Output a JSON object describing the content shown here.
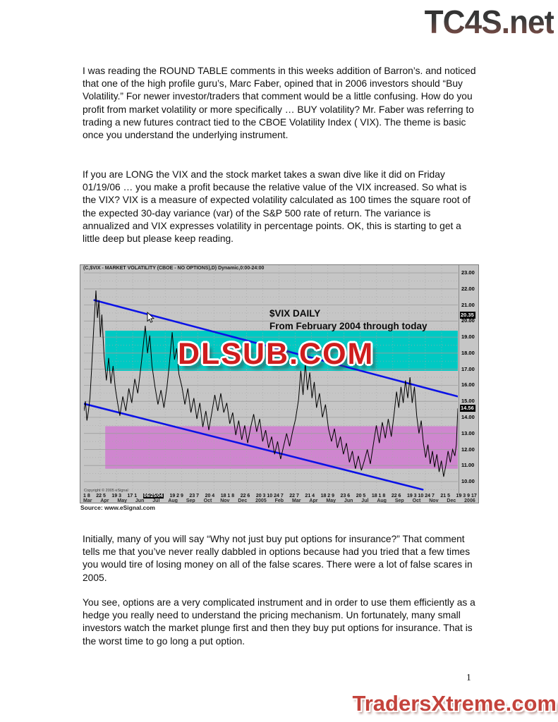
{
  "header": {
    "site_logo": "TC4S.net"
  },
  "article": {
    "p1": "I was reading the ROUND TABLE comments in this weeks addition of Barron’s. and noticed that one of the high profile guru’s, Marc Faber, opined that in 2006 investors should “Buy Volatility.” For newer investor/traders that comment would be a little confusing. How do you profit from market volatility or more specifically … BUY volatility? Mr. Faber was referring to trading a new futures contract tied to the CBOE Volatility Index ( VIX). The theme is basic once you understand the underlying instrument.",
    "p2": "If you are LONG the VIX and the stock market takes a swan dive like it did on Friday 01/19/06 … you make a profit because the relative value of the VIX increased. So what is the VIX?  VIX is a measure of expected volatility calculated as 100 times the square root of the expected 30-day variance (var) of the S&P 500 rate of return. The variance is annualized and VIX expresses volatility in percentage points. OK, this is starting to get a little deep but please keep reading.",
    "p3": "Initially, many of you will say “Why not just buy put options for insurance?” That comment tells me that you’ve never really dabbled in options because had you tried that a few times you would tire of losing money on all of the false scares. There were a lot of false scares in 2005.",
    "p4": "You see, options are a very complicated instrument and in order to use them efficiently as a hedge you really need to understand the pricing mechanism. Un fortunately, many small investors watch the market plunge first and then they buy put options for insurance. That is the worst time to go long a put option."
  },
  "footer": {
    "page_number": "1",
    "site_logo": "TradersXtreme.com"
  },
  "chart_data": {
    "type": "line",
    "title": "(C,$VIX - MARKET VOLATILITY (CBOE - NO OPTIONS),D) Dynamic,0:00-24:00",
    "annotation1": "$VIX DAILY",
    "annotation2": "From February 2004 through today",
    "watermark": "DLSUB.COM",
    "copyright": "Copyright © 2005 eSignal",
    "source": "Source: www.eSignal.com",
    "ylim": [
      9.3,
      23.5
    ],
    "y_ticks": [
      "23.00",
      "22.00",
      "21.00",
      "20.00",
      "19.00",
      "18.00",
      "17.00",
      "16.00",
      "15.00",
      "14.00",
      "13.00",
      "12.00",
      "11.00",
      "10.00"
    ],
    "y_badges": [
      "20.35",
      "14.56"
    ],
    "x_day_labels": [
      "1 8",
      "22 5",
      "19 3",
      "17 1",
      "06/25/04",
      "19 2 9",
      "23 7",
      "20 4",
      "18 1 8",
      "22 6",
      "20 3 10 24 7",
      "22 7",
      "21 4",
      "18 2 9",
      "23 6",
      "20 5",
      "18 1 8",
      "22 6",
      "19 3 10 24 7",
      "21 5",
      "19 3 9 17"
    ],
    "x_day_highlight": "06/25/04",
    "x_month_labels": [
      "Mar",
      "Apr",
      "May",
      "Jun",
      "Jul",
      "Aug",
      "Sep",
      "Oct",
      "Nov",
      "Dec",
      "2005",
      "Feb",
      "Mar",
      "Apr",
      "May",
      "Jun",
      "Jul",
      "Aug",
      "Sep",
      "Oct",
      "Nov",
      "Dec",
      "2006"
    ],
    "grid": true,
    "legend": "none",
    "colors": {
      "chart_background": "#c6c6c6",
      "upper_band": "#00c9c3",
      "lower_band": "#cf86cf",
      "trendline_blue": "#0b12e6",
      "price_line": "#000000",
      "watermark_red": "#cf1d1d",
      "footer_logo_red": "#c4433c"
    },
    "bands": [
      {
        "name": "resistance-zone",
        "color": "#00c9c3",
        "from": 16.9,
        "to": 19.4,
        "x_start": 0.057
      },
      {
        "name": "support-zone",
        "color": "#cf86cf",
        "from": 10.8,
        "to": 13.45,
        "x_start": 0.057
      }
    ],
    "trendlines": [
      {
        "name": "upper-channel",
        "x1": 0.028,
        "v1": 21.3,
        "x2": 1.0,
        "v2": 15.3
      },
      {
        "name": "lower-channel",
        "x1": 0.0,
        "v1": 14.85,
        "x2": 0.906,
        "v2": 9.5
      }
    ],
    "series": [
      {
        "name": "$VIX",
        "color": "#000000",
        "points": [
          [
            0.0,
            14.4
          ],
          [
            0.004,
            15.0
          ],
          [
            0.008,
            13.8
          ],
          [
            0.012,
            14.4
          ],
          [
            0.016,
            15.2
          ],
          [
            0.02,
            16.8
          ],
          [
            0.026,
            19.5
          ],
          [
            0.032,
            21.9
          ],
          [
            0.036,
            20.2
          ],
          [
            0.04,
            21.3
          ],
          [
            0.044,
            19.0
          ],
          [
            0.048,
            20.4
          ],
          [
            0.054,
            17.8
          ],
          [
            0.06,
            16.3
          ],
          [
            0.066,
            17.7
          ],
          [
            0.072,
            16.1
          ],
          [
            0.078,
            17.2
          ],
          [
            0.084,
            15.8
          ],
          [
            0.09,
            14.9
          ],
          [
            0.096,
            14.1
          ],
          [
            0.104,
            15.3
          ],
          [
            0.112,
            14.4
          ],
          [
            0.12,
            15.8
          ],
          [
            0.128,
            14.9
          ],
          [
            0.136,
            16.4
          ],
          [
            0.144,
            15.5
          ],
          [
            0.152,
            17.1
          ],
          [
            0.158,
            18.3
          ],
          [
            0.164,
            19.7
          ],
          [
            0.17,
            18.0
          ],
          [
            0.176,
            19.1
          ],
          [
            0.182,
            17.2
          ],
          [
            0.19,
            15.9
          ],
          [
            0.198,
            14.8
          ],
          [
            0.206,
            15.7
          ],
          [
            0.214,
            14.6
          ],
          [
            0.222,
            15.9
          ],
          [
            0.228,
            17.2
          ],
          [
            0.236,
            19.3
          ],
          [
            0.242,
            17.6
          ],
          [
            0.248,
            18.3
          ],
          [
            0.254,
            16.7
          ],
          [
            0.262,
            15.9
          ],
          [
            0.27,
            14.8
          ],
          [
            0.278,
            15.8
          ],
          [
            0.286,
            14.3
          ],
          [
            0.294,
            15.2
          ],
          [
            0.302,
            13.9
          ],
          [
            0.31,
            14.9
          ],
          [
            0.318,
            13.4
          ],
          [
            0.326,
            14.4
          ],
          [
            0.334,
            13.2
          ],
          [
            0.342,
            14.3
          ],
          [
            0.35,
            15.4
          ],
          [
            0.358,
            14.4
          ],
          [
            0.366,
            15.5
          ],
          [
            0.374,
            14.3
          ],
          [
            0.382,
            14.9
          ],
          [
            0.39,
            13.6
          ],
          [
            0.398,
            14.3
          ],
          [
            0.406,
            12.9
          ],
          [
            0.414,
            13.8
          ],
          [
            0.422,
            12.6
          ],
          [
            0.43,
            13.5
          ],
          [
            0.438,
            12.4
          ],
          [
            0.446,
            13.4
          ],
          [
            0.454,
            14.2
          ],
          [
            0.462,
            13.1
          ],
          [
            0.47,
            13.9
          ],
          [
            0.478,
            12.5
          ],
          [
            0.486,
            13.2
          ],
          [
            0.494,
            12.1
          ],
          [
            0.502,
            12.8
          ],
          [
            0.51,
            11.7
          ],
          [
            0.518,
            12.5
          ],
          [
            0.526,
            11.4
          ],
          [
            0.534,
            12.2
          ],
          [
            0.542,
            13.0
          ],
          [
            0.55,
            12.2
          ],
          [
            0.558,
            13.1
          ],
          [
            0.566,
            13.9
          ],
          [
            0.574,
            15.1
          ],
          [
            0.58,
            16.9
          ],
          [
            0.586,
            15.4
          ],
          [
            0.592,
            17.4
          ],
          [
            0.598,
            15.7
          ],
          [
            0.604,
            16.8
          ],
          [
            0.61,
            15.2
          ],
          [
            0.616,
            16.2
          ],
          [
            0.622,
            14.6
          ],
          [
            0.63,
            15.5
          ],
          [
            0.638,
            14.0
          ],
          [
            0.646,
            14.8
          ],
          [
            0.654,
            13.3
          ],
          [
            0.662,
            12.5
          ],
          [
            0.67,
            13.3
          ],
          [
            0.678,
            12.1
          ],
          [
            0.686,
            12.8
          ],
          [
            0.694,
            11.7
          ],
          [
            0.702,
            12.4
          ],
          [
            0.71,
            11.2
          ],
          [
            0.718,
            11.9
          ],
          [
            0.726,
            10.8
          ],
          [
            0.734,
            11.6
          ],
          [
            0.742,
            10.7
          ],
          [
            0.75,
            11.3
          ],
          [
            0.758,
            12.0
          ],
          [
            0.766,
            11.1
          ],
          [
            0.774,
            12.3
          ],
          [
            0.782,
            13.5
          ],
          [
            0.79,
            12.4
          ],
          [
            0.798,
            13.7
          ],
          [
            0.806,
            12.7
          ],
          [
            0.814,
            13.9
          ],
          [
            0.822,
            12.8
          ],
          [
            0.83,
            14.3
          ],
          [
            0.836,
            15.6
          ],
          [
            0.842,
            14.6
          ],
          [
            0.848,
            15.9
          ],
          [
            0.854,
            14.9
          ],
          [
            0.86,
            16.3
          ],
          [
            0.866,
            15.2
          ],
          [
            0.872,
            16.5
          ],
          [
            0.878,
            14.9
          ],
          [
            0.884,
            15.9
          ],
          [
            0.89,
            14.1
          ],
          [
            0.896,
            13.0
          ],
          [
            0.902,
            13.8
          ],
          [
            0.908,
            12.4
          ],
          [
            0.914,
            11.5
          ],
          [
            0.92,
            12.3
          ],
          [
            0.926,
            11.1
          ],
          [
            0.932,
            11.9
          ],
          [
            0.938,
            10.9
          ],
          [
            0.944,
            11.7
          ],
          [
            0.95,
            10.6
          ],
          [
            0.956,
            11.3
          ],
          [
            0.962,
            10.3
          ],
          [
            0.968,
            11.0
          ],
          [
            0.974,
            11.9
          ],
          [
            0.98,
            11.2
          ],
          [
            0.986,
            12.0
          ],
          [
            0.992,
            11.6
          ],
          [
            0.996,
            12.3
          ],
          [
            1.0,
            14.56
          ]
        ]
      }
    ]
  }
}
